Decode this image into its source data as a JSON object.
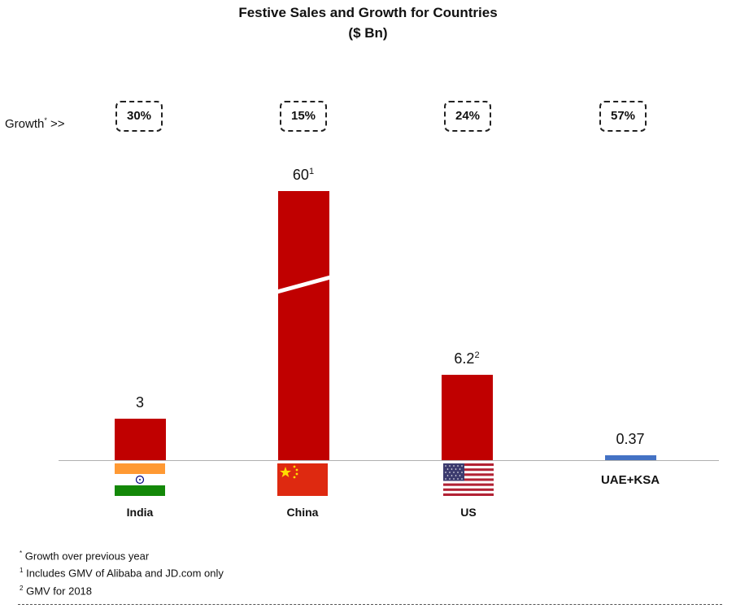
{
  "chart_data": {
    "type": "bar",
    "title": "Festive Sales and Growth for Countries",
    "subtitle": "($ Bn)",
    "categories": [
      "India",
      "China",
      "US",
      "UAE+KSA"
    ],
    "values": [
      3,
      60,
      6.2,
      0.37
    ],
    "value_labels": [
      "3",
      "60",
      "6.2",
      "0.37"
    ],
    "value_superscripts": [
      "",
      "1",
      "2",
      ""
    ],
    "growth_label": "Growth",
    "growth_marker": "*",
    "growth_arrow": ">>",
    "growth": [
      "30%",
      "15%",
      "24%",
      "57%"
    ],
    "bar_colors": [
      "#C00000",
      "#C00000",
      "#C00000",
      "#4472C4"
    ],
    "broken_axis_bar": "China",
    "footnotes": [
      {
        "mark": "*",
        "text": "Growth over previous year"
      },
      {
        "mark": "1",
        "text": "Includes GMV of Alibaba and JD.com only"
      },
      {
        "mark": "2",
        "text": "GMV for 2018"
      }
    ]
  }
}
